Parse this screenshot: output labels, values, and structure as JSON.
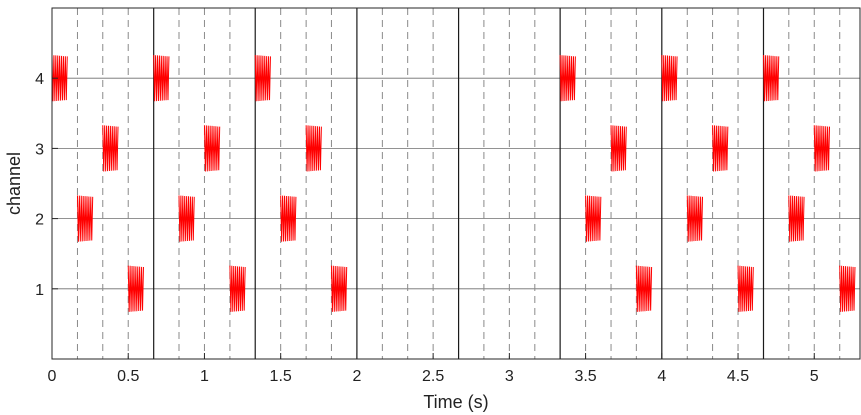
{
  "chart_data": {
    "type": "line",
    "title": "",
    "xlabel": "Time (s)",
    "ylabel": "channel",
    "xlim": [
      0,
      5.3
    ],
    "ylim": [
      0,
      5
    ],
    "xticks": [
      0,
      0.5,
      1,
      1.5,
      2,
      2.5,
      3,
      3.5,
      4,
      4.5,
      5
    ],
    "xtick_labels": [
      "0",
      "0.5",
      "1",
      "1.5",
      "2",
      "2.5",
      "3",
      "3.5",
      "4",
      "4.5",
      "5"
    ],
    "yticks": [
      1,
      2,
      3,
      4
    ],
    "ytick_labels": [
      "1",
      "2",
      "3",
      "4"
    ],
    "grid": true,
    "solid_vlines": [
      0.667,
      1.333,
      2.0,
      2.667,
      3.333,
      4.0,
      4.667
    ],
    "dashed_vlines": [
      0.167,
      0.333,
      0.5,
      0.833,
      1.0,
      1.167,
      1.5,
      1.667,
      1.833,
      2.167,
      2.333,
      2.5,
      2.833,
      3.0,
      3.167,
      3.5,
      3.667,
      3.833,
      4.167,
      4.333,
      4.5,
      4.833,
      5.0,
      5.167
    ],
    "burst_color": "#ff0000",
    "burst_amplitude": 0.33,
    "burst_duration": 0.1,
    "bursts": [
      {
        "channel": 4,
        "start": 0.0
      },
      {
        "channel": 2,
        "start": 0.167
      },
      {
        "channel": 3,
        "start": 0.333
      },
      {
        "channel": 1,
        "start": 0.5
      },
      {
        "channel": 4,
        "start": 0.667
      },
      {
        "channel": 2,
        "start": 0.833
      },
      {
        "channel": 3,
        "start": 1.0
      },
      {
        "channel": 1,
        "start": 1.167
      },
      {
        "channel": 4,
        "start": 1.333
      },
      {
        "channel": 2,
        "start": 1.5
      },
      {
        "channel": 3,
        "start": 1.667
      },
      {
        "channel": 1,
        "start": 1.833
      },
      {
        "channel": 4,
        "start": 3.333
      },
      {
        "channel": 2,
        "start": 3.5
      },
      {
        "channel": 3,
        "start": 3.667
      },
      {
        "channel": 1,
        "start": 3.833
      },
      {
        "channel": 4,
        "start": 4.0
      },
      {
        "channel": 2,
        "start": 4.167
      },
      {
        "channel": 3,
        "start": 4.333
      },
      {
        "channel": 1,
        "start": 4.5
      },
      {
        "channel": 4,
        "start": 4.667
      },
      {
        "channel": 2,
        "start": 4.833
      },
      {
        "channel": 3,
        "start": 5.0
      },
      {
        "channel": 1,
        "start": 5.167
      }
    ]
  }
}
